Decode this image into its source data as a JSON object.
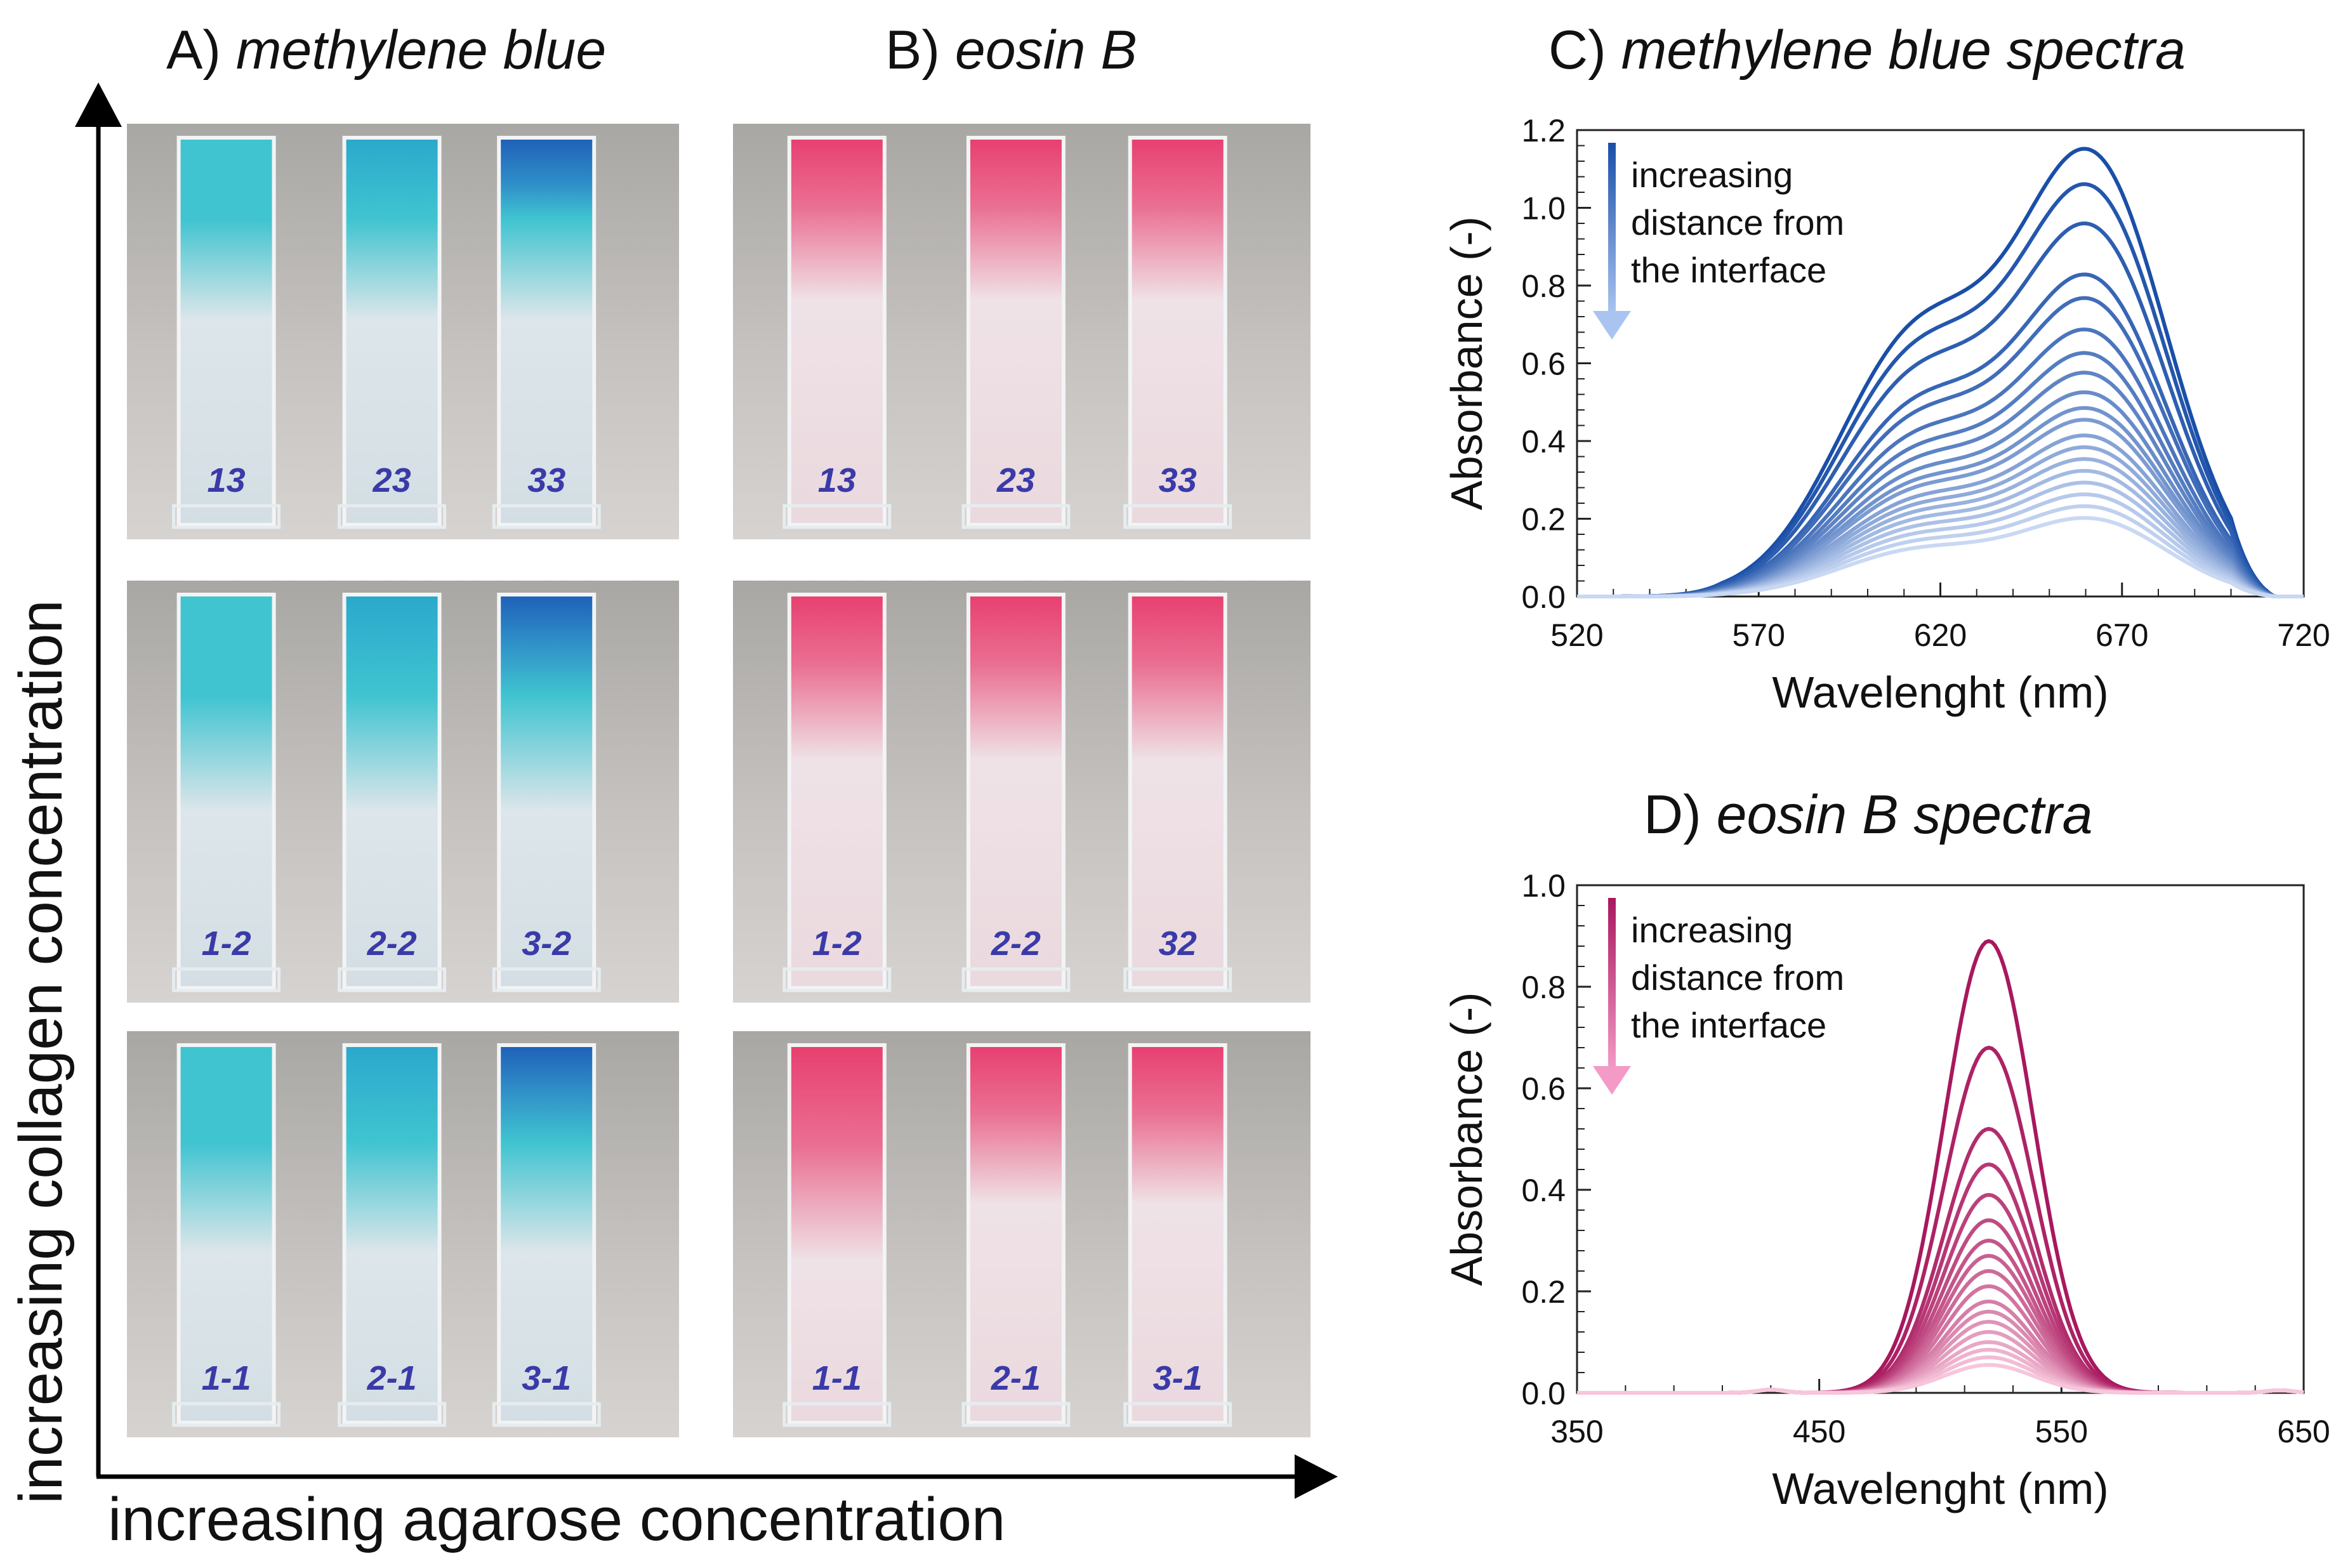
{
  "panels": {
    "a": {
      "prefix": "A) ",
      "name": "methylene blue"
    },
    "b": {
      "prefix": "B) ",
      "name": "eosin B"
    },
    "c": {
      "prefix": "C) ",
      "name": "methylene blue spectra"
    },
    "d": {
      "prefix": "D) ",
      "name": "eosin B spectra"
    }
  },
  "axes": {
    "y_label": "increasing collagen concentration",
    "x_label": "increasing agarose concentration"
  },
  "photos": {
    "rows": [
      {
        "labels": [
          "1-3",
          "2-3",
          "3-3"
        ],
        "display": [
          "13",
          "23",
          "33"
        ]
      },
      {
        "labels": [
          "1-2",
          "2-2",
          "3-2"
        ],
        "display": [
          "1-2",
          "2-2",
          "3-2"
        ]
      },
      {
        "labels": [
          "1-1",
          "2-1",
          "3-1"
        ],
        "display": [
          "1-1",
          "2-1",
          "3-1"
        ]
      }
    ],
    "eosin_display": [
      [
        "13",
        "23",
        "33"
      ],
      [
        "1-2",
        "2-2",
        "32"
      ],
      [
        "1-1",
        "2-1",
        "3-1"
      ]
    ],
    "colors": {
      "mb_light": "#40c4d0",
      "mb_dark": "#1f5fb8",
      "eosin": "#e83f6f",
      "gel": "#dde6ea",
      "eosin_gel": "#efe2e6",
      "background": "#b9b6b2",
      "ink": "#3a3aa8"
    }
  },
  "chart_data": [
    {
      "type": "line",
      "title": "methylene blue spectra",
      "xlabel": "Wavelenght (nm)",
      "ylabel": "Absorbance (-)",
      "xlim": [
        520,
        720
      ],
      "ylim": [
        0,
        1.2
      ],
      "xticks": [
        "520",
        "570",
        "620",
        "670",
        "720"
      ],
      "yticks": [
        "0.0",
        "0.2",
        "0.4",
        "0.6",
        "0.8",
        "1.0",
        "1.2"
      ],
      "annotation": [
        "increasing",
        "distance from",
        "the interface"
      ],
      "peak_wavelength": 663,
      "shoulder_wavelength": 612,
      "series_peaks": [
        1.14,
        1.05,
        0.95,
        0.82,
        0.76,
        0.68,
        0.62,
        0.57,
        0.52,
        0.48,
        0.45,
        0.41,
        0.38,
        0.35,
        0.32,
        0.29,
        0.26,
        0.23,
        0.2
      ],
      "color_start": "#1a4fa8",
      "color_end": "#c9d8f3"
    },
    {
      "type": "line",
      "title": "eosin B spectra",
      "xlabel": "Wavelenght (nm)",
      "ylabel": "Absorbance (-)",
      "xlim": [
        350,
        650
      ],
      "ylim": [
        0,
        1.0
      ],
      "xticks": [
        "350",
        "450",
        "550",
        "650"
      ],
      "yticks": [
        "0.0",
        "0.2",
        "0.4",
        "0.6",
        "0.8",
        "1.0"
      ],
      "annotation": [
        "increasing",
        "distance from",
        "the interface"
      ],
      "peak_wavelength": 520,
      "series_peaks": [
        0.89,
        0.68,
        0.52,
        0.45,
        0.39,
        0.34,
        0.3,
        0.27,
        0.24,
        0.21,
        0.18,
        0.16,
        0.14,
        0.12,
        0.1,
        0.085,
        0.07,
        0.055
      ],
      "color_start": "#a8185e",
      "color_end": "#f7c6dc"
    }
  ]
}
